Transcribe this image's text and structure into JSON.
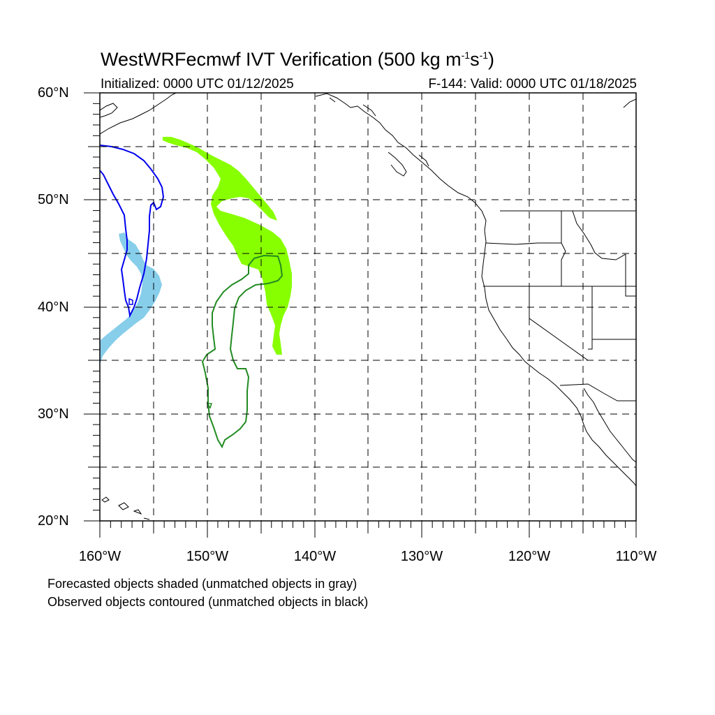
{
  "title": {
    "main": "WestWRFecmwf IVT Verification (500 kg m",
    "sup1": "-1",
    "mid": "s",
    "sup2": "-1",
    "end": ")"
  },
  "subtitle_left": "Initialized: 0000 UTC 01/12/2025",
  "subtitle_right": "F-144: Valid: 0000 UTC 01/18/2025",
  "axes": {
    "lon_range": [
      -160,
      -110
    ],
    "lat_range": [
      20,
      60
    ],
    "x_tick_labels": [
      "160°W",
      "150°W",
      "140°W",
      "130°W",
      "120°W",
      "110°W"
    ],
    "y_tick_labels": [
      "60°N",
      "50°N",
      "40°N",
      "30°N",
      "20°N"
    ],
    "gridlines": "dashed every 5°"
  },
  "legend_notes": [
    "Forecasted objects shaded (unmatched objects in gray)",
    "Observed objects contoured (unmatched objects in black)"
  ],
  "objects": [
    {
      "kind": "forecast-shaded",
      "color": "#88ff00",
      "match": "green pair"
    },
    {
      "kind": "observed-contour",
      "color": "#228b22",
      "match": "green pair"
    },
    {
      "kind": "forecast-shaded",
      "color": "#87ceeb",
      "match": "blue pair"
    },
    {
      "kind": "observed-contour",
      "color": "#0000ee",
      "match": "blue pair"
    }
  ]
}
